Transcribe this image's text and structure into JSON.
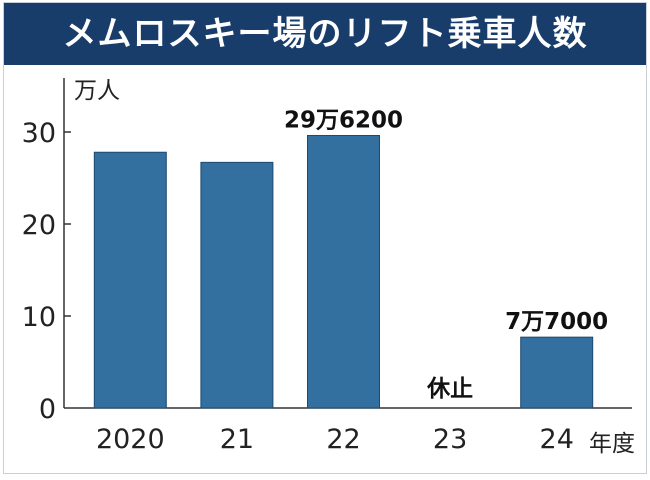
{
  "title": "メムロスキー場のリフト乗車人数",
  "chart_data": {
    "type": "bar",
    "title": "メムロスキー場のリフト乗車人数",
    "ylabel": "万人",
    "xlabel": "年度",
    "categories": [
      "2020",
      "21",
      "22",
      "23",
      "24"
    ],
    "values": [
      27.8,
      26.7,
      29.62,
      null,
      7.7
    ],
    "data_labels": [
      "",
      "",
      "29万6200",
      "休止",
      "7万7000"
    ],
    "yticks": [
      0,
      10,
      20,
      30
    ],
    "ylim": [
      0,
      35
    ],
    "grid": false,
    "bar_color": "#336f9f"
  }
}
